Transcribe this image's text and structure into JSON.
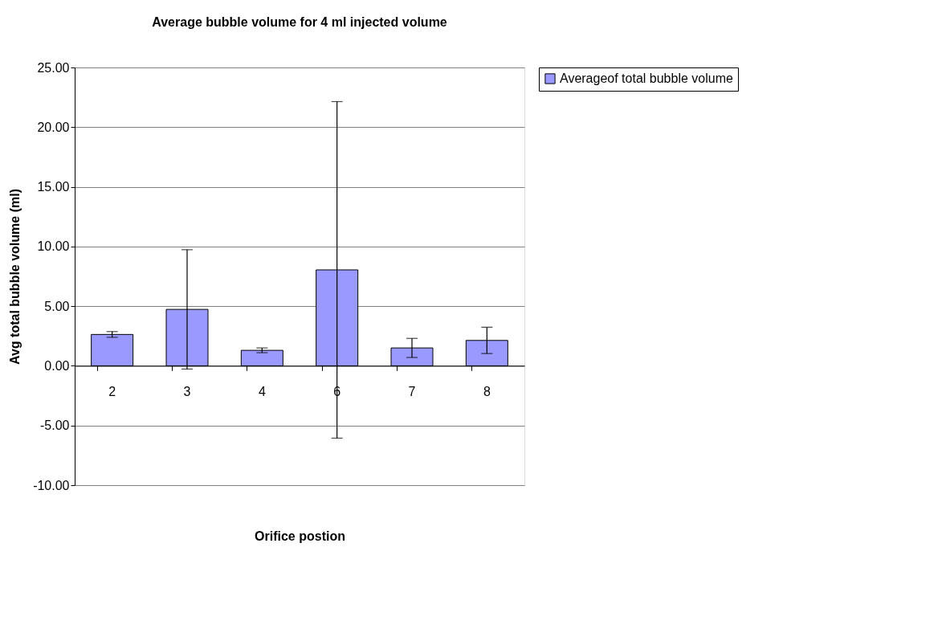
{
  "chart_data": {
    "type": "bar",
    "title": "Average bubble volume for 4 ml injected volume",
    "xlabel": "Orifice postion",
    "ylabel": "Avg total bubble volume (ml)",
    "categories": [
      "2",
      "3",
      "4",
      "6",
      "7",
      "8"
    ],
    "series": [
      {
        "name": "Averageof total bubble volume",
        "color": "#9999ff",
        "values": [
          2.63,
          4.73,
          1.3,
          8.04,
          1.5,
          2.13
        ],
        "errors": [
          0.24,
          5.0,
          0.2,
          14.1,
          0.8,
          1.1
        ]
      }
    ],
    "ylim": [
      -10,
      25
    ],
    "yticks": [
      {
        "value": -10,
        "label": "-10.00"
      },
      {
        "value": -5,
        "label": "-5.00"
      },
      {
        "value": 0,
        "label": "0.00"
      },
      {
        "value": 5,
        "label": "5.00"
      },
      {
        "value": 10,
        "label": "10.00"
      },
      {
        "value": 15,
        "label": "15.00"
      },
      {
        "value": 20,
        "label": "20.00"
      },
      {
        "value": 25,
        "label": "25.00"
      }
    ],
    "grid": "y",
    "legend": "right"
  }
}
